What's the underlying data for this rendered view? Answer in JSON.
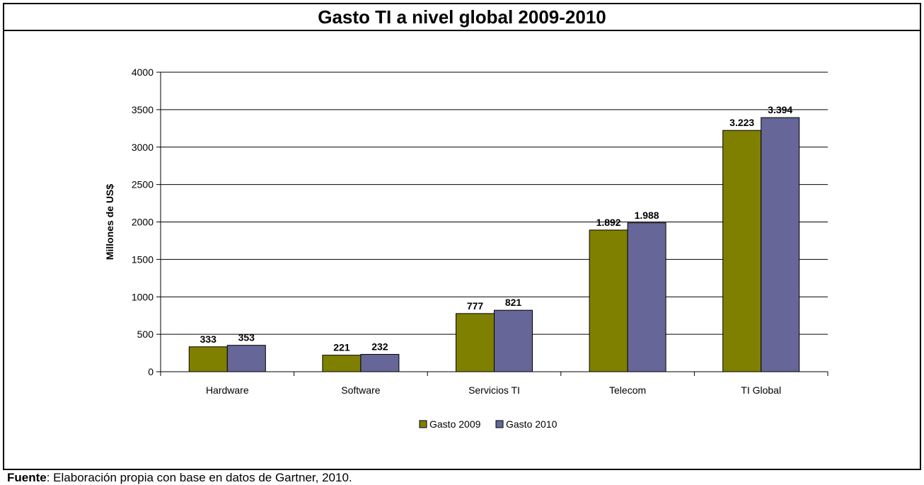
{
  "chart_data": {
    "type": "bar",
    "title": "Gasto TI a nivel global 2009-2010",
    "ylabel": "Millones de US$",
    "xlabel": "",
    "ylim": [
      0,
      4000
    ],
    "yticks": [
      "0",
      "500",
      "1000",
      "1500",
      "2000",
      "2500",
      "3000",
      "3500",
      "4000"
    ],
    "ytick_values": [
      0,
      500,
      1000,
      1500,
      2000,
      2500,
      3000,
      3500,
      4000
    ],
    "categories": [
      "Hardware",
      "Software",
      "Servicios TI",
      "Telecom",
      "TI Global"
    ],
    "series": [
      {
        "name": "Gasto 2009",
        "color": "#808000",
        "values": [
          333,
          221,
          777,
          1892,
          3223
        ],
        "labels": [
          "333",
          "221",
          "777",
          "1.892",
          "3.223"
        ]
      },
      {
        "name": "Gasto 2010",
        "color": "#666699",
        "values": [
          353,
          232,
          821,
          1988,
          3394
        ],
        "labels": [
          "353",
          "232",
          "821",
          "1.988",
          "3.394"
        ]
      }
    ],
    "grid": true,
    "legend": "bottom"
  },
  "source": {
    "label": "Fuente",
    "text": ": Elaboración propia con base en datos de Gartner, 2010."
  }
}
